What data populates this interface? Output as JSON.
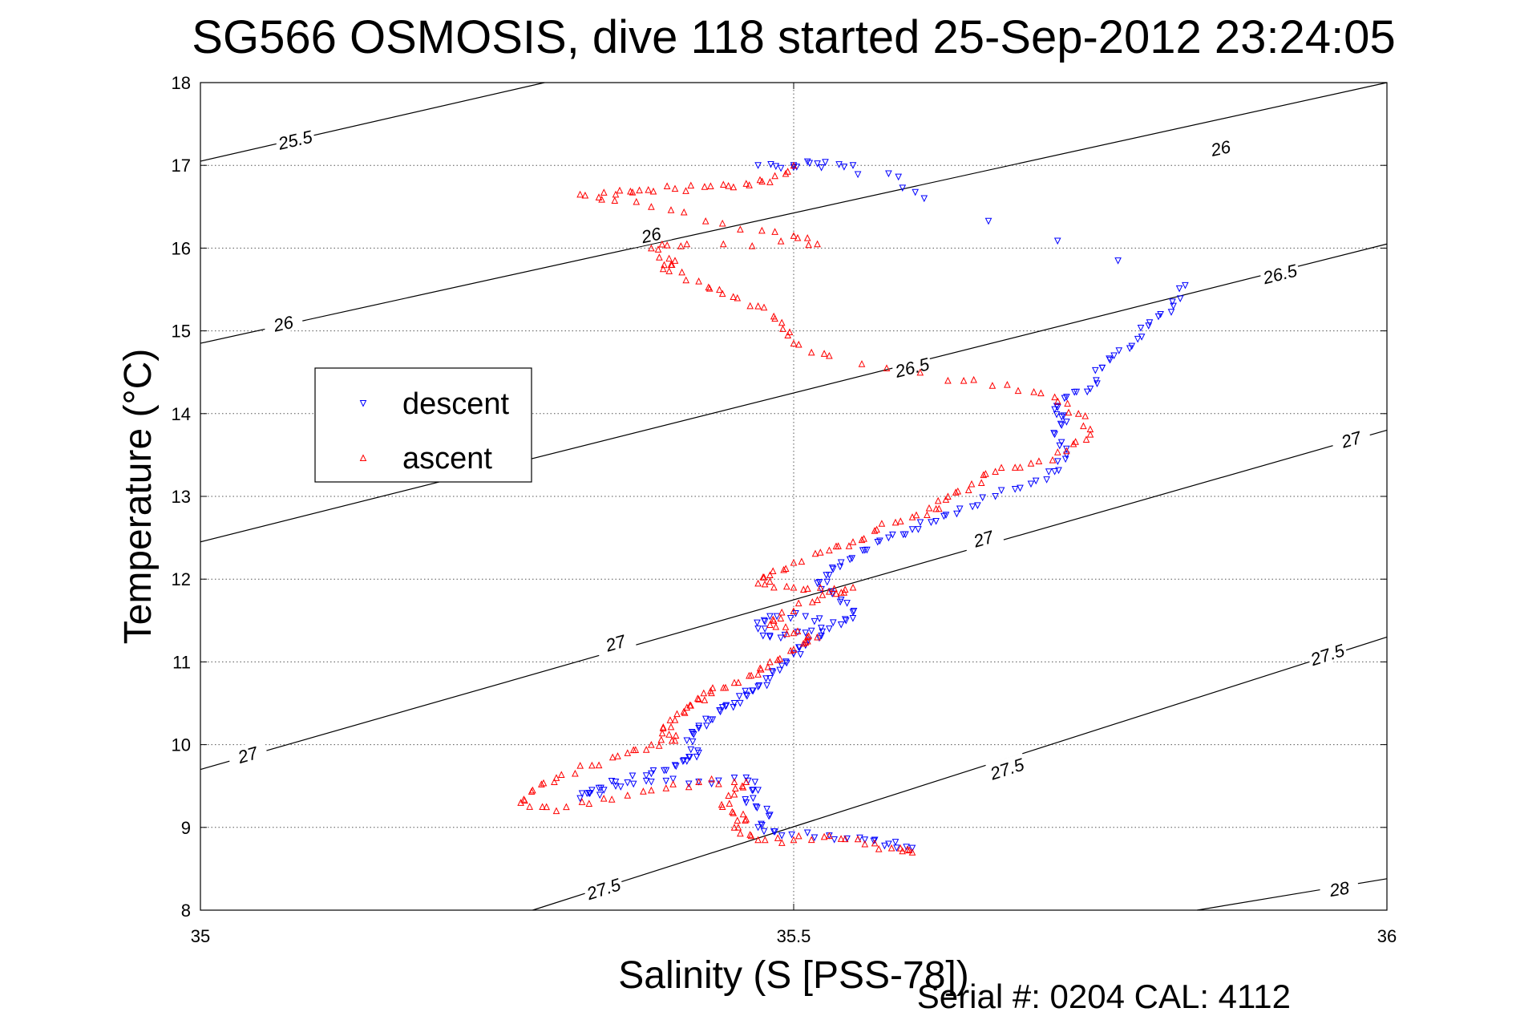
{
  "chart_data": {
    "type": "scatter",
    "title": "SG566 OSMOSIS, dive 118 started 25-Sep-2012 23:24:05",
    "xlabel": "Salinity (S [PSS-78])",
    "ylabel": "Temperature (°C)",
    "footer": "Serial #: 0204  CAL: 4112",
    "xlim": [
      35,
      36
    ],
    "ylim": [
      8,
      18
    ],
    "xticks": [
      "35",
      "35.5",
      "36"
    ],
    "yticks": [
      "8",
      "9",
      "10",
      "11",
      "12",
      "13",
      "14",
      "15",
      "16",
      "17",
      "18"
    ],
    "grid": true,
    "legend": {
      "location": "middle-left",
      "entries": [
        {
          "label": "descent",
          "color": "#0000ff",
          "marker": "triangle-down"
        },
        {
          "label": "ascent",
          "color": "#ff0000",
          "marker": "triangle-up"
        }
      ]
    },
    "contours": {
      "color": "#000000",
      "lines": [
        {
          "label": "25.5",
          "p1": [
            35.0,
            17.05
          ],
          "p2": [
            35.29,
            18.0
          ],
          "labels_at": [
            [
              35.08,
              17.3
            ]
          ]
        },
        {
          "label": "26",
          "p1": [
            35.0,
            14.85
          ],
          "p2": [
            36.0,
            18.0
          ],
          "labels_at": [
            [
              35.07,
              15.08
            ],
            [
              35.38,
              16.15
            ],
            [
              35.86,
              17.2
            ]
          ]
        },
        {
          "label": "26.5",
          "p1": [
            35.0,
            12.45
          ],
          "p2": [
            36.0,
            16.05
          ],
          "labels_at": [
            [
              35.6,
              14.55
            ],
            [
              35.91,
              15.68
            ]
          ]
        },
        {
          "label": "27",
          "p1": [
            35.0,
            9.7
          ],
          "p2": [
            36.0,
            13.8
          ],
          "labels_at": [
            [
              35.04,
              9.87
            ],
            [
              35.35,
              11.22
            ],
            [
              35.66,
              12.48
            ],
            [
              35.97,
              13.68
            ]
          ]
        },
        {
          "label": "27.5",
          "p1": [
            35.28,
            8.0
          ],
          "p2": [
            36.0,
            11.3
          ],
          "labels_at": [
            [
              35.34,
              8.25
            ],
            [
              35.68,
              9.7
            ],
            [
              35.95,
              11.08
            ]
          ]
        },
        {
          "label": "28",
          "p1": [
            35.84,
            8.0
          ],
          "p2": [
            36.0,
            8.38
          ],
          "labels_at": [
            [
              35.96,
              8.25
            ]
          ]
        }
      ]
    },
    "series": [
      {
        "name": "descent",
        "color": "#0000ff",
        "marker": "triangle-down",
        "points": [
          [
            35.55,
            17.0
          ],
          [
            35.52,
            17.02
          ],
          [
            35.5,
            17.0
          ],
          [
            35.47,
            17.0
          ],
          [
            35.58,
            16.9
          ],
          [
            35.61,
            16.6
          ],
          [
            35.83,
            15.55
          ],
          [
            35.82,
            15.3
          ],
          [
            35.8,
            15.1
          ],
          [
            35.79,
            14.9
          ],
          [
            35.77,
            14.7
          ],
          [
            35.76,
            14.55
          ],
          [
            35.75,
            14.3
          ],
          [
            35.73,
            14.2
          ],
          [
            35.72,
            14.05
          ],
          [
            35.73,
            13.9
          ],
          [
            35.72,
            13.75
          ],
          [
            35.73,
            13.5
          ],
          [
            35.72,
            13.3
          ],
          [
            35.7,
            13.15
          ],
          [
            35.67,
            13.0
          ],
          [
            35.64,
            12.85
          ],
          [
            35.62,
            12.7
          ],
          [
            35.6,
            12.6
          ],
          [
            35.58,
            12.5
          ],
          [
            35.56,
            12.35
          ],
          [
            35.54,
            12.2
          ],
          [
            35.53,
            12.05
          ],
          [
            35.52,
            11.95
          ],
          [
            35.54,
            11.75
          ],
          [
            35.55,
            11.6
          ],
          [
            35.54,
            11.45
          ],
          [
            35.51,
            11.55
          ],
          [
            35.48,
            11.55
          ],
          [
            35.47,
            11.4
          ],
          [
            35.48,
            11.3
          ],
          [
            35.51,
            11.35
          ],
          [
            35.53,
            11.4
          ],
          [
            35.51,
            11.2
          ],
          [
            35.5,
            11.1
          ],
          [
            35.49,
            10.95
          ],
          [
            35.48,
            10.8
          ],
          [
            35.47,
            10.7
          ],
          [
            35.46,
            10.6
          ],
          [
            35.45,
            10.5
          ],
          [
            35.44,
            10.45
          ],
          [
            35.43,
            10.3
          ],
          [
            35.42,
            10.2
          ],
          [
            35.41,
            10.05
          ],
          [
            35.42,
            9.9
          ],
          [
            35.41,
            9.8
          ],
          [
            35.4,
            9.75
          ],
          [
            35.38,
            9.65
          ],
          [
            35.35,
            9.55
          ],
          [
            35.33,
            9.45
          ],
          [
            35.32,
            9.35
          ],
          [
            35.35,
            9.5
          ],
          [
            35.38,
            9.55
          ],
          [
            35.42,
            9.55
          ],
          [
            35.46,
            9.6
          ],
          [
            35.47,
            9.45
          ],
          [
            35.46,
            9.3
          ],
          [
            35.48,
            9.15
          ],
          [
            35.47,
            9.0
          ],
          [
            35.49,
            8.9
          ],
          [
            35.53,
            8.9
          ],
          [
            35.56,
            8.85
          ],
          [
            35.58,
            8.8
          ],
          [
            35.6,
            8.75
          ]
        ]
      },
      {
        "name": "ascent",
        "color": "#ff0000",
        "marker": "triangle-up",
        "points": [
          [
            35.5,
            17.0
          ],
          [
            35.48,
            16.8
          ],
          [
            35.46,
            16.78
          ],
          [
            35.43,
            16.75
          ],
          [
            35.4,
            16.72
          ],
          [
            35.37,
            16.7
          ],
          [
            35.35,
            16.65
          ],
          [
            35.32,
            16.65
          ],
          [
            35.38,
            16.5
          ],
          [
            35.44,
            16.3
          ],
          [
            35.5,
            16.15
          ],
          [
            35.52,
            16.05
          ],
          [
            35.41,
            16.05
          ],
          [
            35.38,
            16.0
          ],
          [
            35.4,
            15.85
          ],
          [
            35.39,
            15.75
          ],
          [
            35.42,
            15.6
          ],
          [
            35.44,
            15.45
          ],
          [
            35.47,
            15.3
          ],
          [
            35.49,
            15.1
          ],
          [
            35.5,
            14.85
          ],
          [
            35.53,
            14.7
          ],
          [
            35.63,
            14.4
          ],
          [
            35.68,
            14.35
          ],
          [
            35.72,
            14.2
          ],
          [
            35.74,
            14.0
          ],
          [
            35.75,
            13.75
          ],
          [
            35.73,
            13.55
          ],
          [
            35.7,
            13.4
          ],
          [
            35.67,
            13.3
          ],
          [
            35.65,
            13.15
          ],
          [
            35.63,
            13.0
          ],
          [
            35.62,
            12.85
          ],
          [
            35.6,
            12.75
          ],
          [
            35.57,
            12.6
          ],
          [
            35.55,
            12.45
          ],
          [
            35.53,
            12.35
          ],
          [
            35.5,
            12.2
          ],
          [
            35.48,
            12.05
          ],
          [
            35.47,
            11.95
          ],
          [
            35.5,
            11.9
          ],
          [
            35.53,
            11.85
          ],
          [
            35.55,
            11.9
          ],
          [
            35.52,
            11.75
          ],
          [
            35.49,
            11.6
          ],
          [
            35.48,
            11.45
          ],
          [
            35.5,
            11.35
          ],
          [
            35.52,
            11.3
          ],
          [
            35.5,
            11.15
          ],
          [
            35.48,
            11.0
          ],
          [
            35.47,
            10.85
          ],
          [
            35.45,
            10.75
          ],
          [
            35.43,
            10.65
          ],
          [
            35.42,
            10.55
          ],
          [
            35.41,
            10.45
          ],
          [
            35.4,
            10.3
          ],
          [
            35.39,
            10.2
          ],
          [
            35.4,
            10.05
          ],
          [
            35.38,
            10.0
          ],
          [
            35.36,
            9.9
          ],
          [
            35.33,
            9.75
          ],
          [
            35.3,
            9.6
          ],
          [
            35.28,
            9.45
          ],
          [
            35.27,
            9.3
          ],
          [
            35.3,
            9.2
          ],
          [
            35.34,
            9.35
          ],
          [
            35.38,
            9.45
          ],
          [
            35.42,
            9.55
          ],
          [
            35.46,
            9.55
          ],
          [
            35.45,
            9.4
          ],
          [
            35.44,
            9.25
          ],
          [
            35.46,
            9.1
          ],
          [
            35.45,
            9.0
          ],
          [
            35.47,
            8.85
          ],
          [
            35.5,
            8.85
          ],
          [
            35.53,
            8.9
          ],
          [
            35.56,
            8.8
          ],
          [
            35.59,
            8.75
          ],
          [
            35.6,
            8.7
          ]
        ]
      }
    ]
  }
}
